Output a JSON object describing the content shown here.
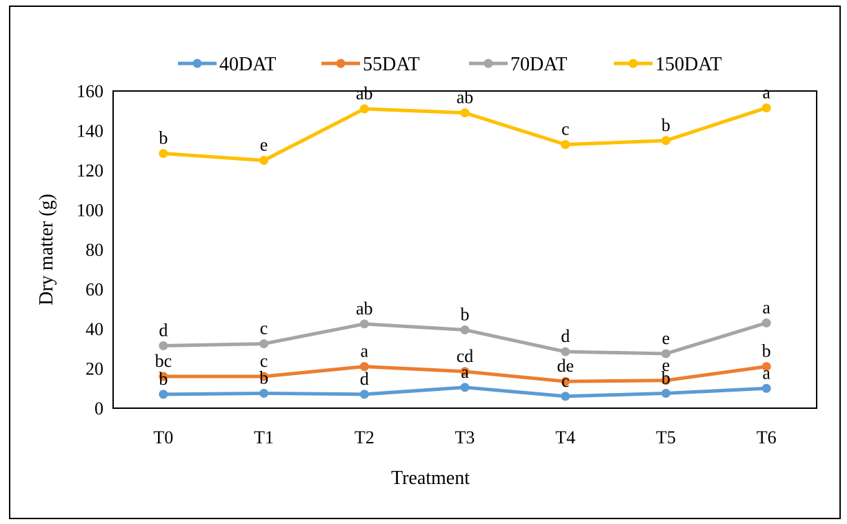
{
  "chart_data": {
    "type": "line",
    "title": "",
    "xlabel": "Treatment",
    "ylabel": "Dry matter (g)",
    "categories": [
      "T0",
      "T1",
      "T2",
      "T3",
      "T4",
      "T5",
      "T6"
    ],
    "ylim": [
      0,
      160
    ],
    "yticks": [
      "0",
      "20",
      "40",
      "60",
      "80",
      "100",
      "120",
      "140",
      "160"
    ],
    "grid": false,
    "legend_position": "top",
    "series": [
      {
        "name": "40DAT",
        "color": "#5B9BD5",
        "values": [
          7,
          7.5,
          7,
          10.5,
          6,
          7.5,
          10
        ],
        "labels": [
          "b",
          "b",
          "d",
          "a",
          "c",
          "b",
          "a"
        ]
      },
      {
        "name": "55DAT",
        "color": "#ED7D31",
        "values": [
          16,
          16,
          21,
          18.5,
          13.5,
          14,
          21
        ],
        "labels": [
          "bc",
          "c",
          "a",
          "cd",
          "de",
          "e",
          "b"
        ]
      },
      {
        "name": "70DAT",
        "color": "#A5A5A5",
        "values": [
          31.5,
          32.5,
          42.5,
          39.5,
          28.5,
          27.5,
          43
        ],
        "labels": [
          "d",
          "c",
          "ab",
          "b",
          "d",
          "e",
          "a"
        ]
      },
      {
        "name": "150DAT",
        "color": "#FFC000",
        "values": [
          128.5,
          125,
          151,
          149,
          133,
          135,
          151.5
        ],
        "labels": [
          "b",
          "e",
          "ab",
          "ab",
          "c",
          "b",
          "a"
        ]
      }
    ]
  }
}
